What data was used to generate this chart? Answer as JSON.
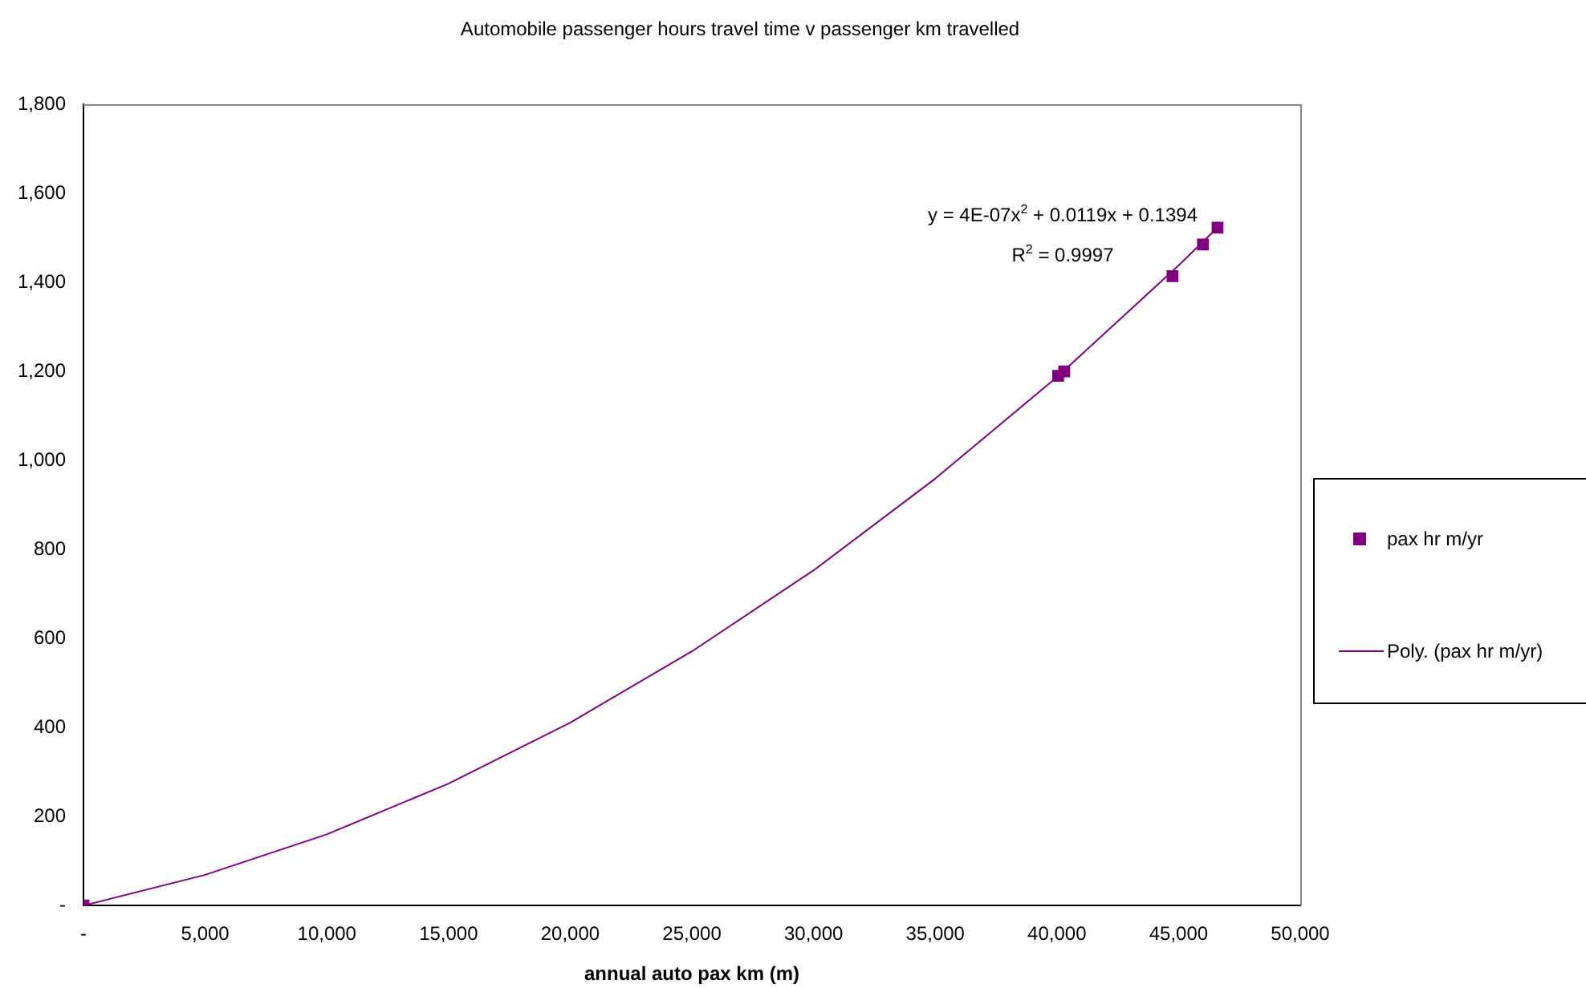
{
  "chart_data": {
    "type": "scatter",
    "title": "Automobile passenger hours travel time v passenger km travelled",
    "xlabel": "annual auto pax km (m)",
    "series": [
      {
        "name": "pax hr m/yr",
        "type": "scatter",
        "color": "#800080",
        "marker": "square",
        "x": [
          0,
          40050,
          40300,
          44750,
          46000,
          46600
        ],
        "values": [
          0,
          1190,
          1200,
          1414,
          1485,
          1523
        ]
      },
      {
        "name": "Poly. (pax hr m/yr)",
        "type": "line",
        "color": "#800080",
        "marker": "none",
        "line_style": "solid",
        "x": [
          0,
          5000,
          10000,
          15000,
          20000,
          25000,
          30000,
          35000,
          40000,
          45000,
          46600
        ],
        "values": [
          0,
          69,
          160,
          274,
          411,
          571,
          753,
          959,
          1187,
          1438,
          1523
        ]
      }
    ],
    "xlim": [
      0,
      50000
    ],
    "xticks": [
      {
        "value": 0,
        "label": "-"
      },
      {
        "value": 5000,
        "label": "5,000"
      },
      {
        "value": 10000,
        "label": "10,000"
      },
      {
        "value": 15000,
        "label": "15,000"
      },
      {
        "value": 20000,
        "label": "20,000"
      },
      {
        "value": 25000,
        "label": "25,000"
      },
      {
        "value": 30000,
        "label": "30,000"
      },
      {
        "value": 35000,
        "label": "35,000"
      },
      {
        "value": 40000,
        "label": "40,000"
      },
      {
        "value": 45000,
        "label": "45,000"
      },
      {
        "value": 50000,
        "label": "50,000"
      }
    ],
    "ylim": [
      0,
      1800
    ],
    "yticks": [
      {
        "value": 0,
        "label": "-"
      },
      200,
      400,
      600,
      800,
      {
        "value": 1000,
        "label": "1,000"
      },
      {
        "value": 1200,
        "label": "1,200"
      },
      {
        "value": 1400,
        "label": "1,400"
      },
      {
        "value": 1600,
        "label": "1,600"
      },
      {
        "value": 1800,
        "label": "1,800"
      }
    ],
    "annotations": [
      "y = 4E-07x$^{2}$ + 0.0119x + 0.1394",
      "R$^{2}$ = 0.9997"
    ],
    "grid": false,
    "legend": "right"
  }
}
